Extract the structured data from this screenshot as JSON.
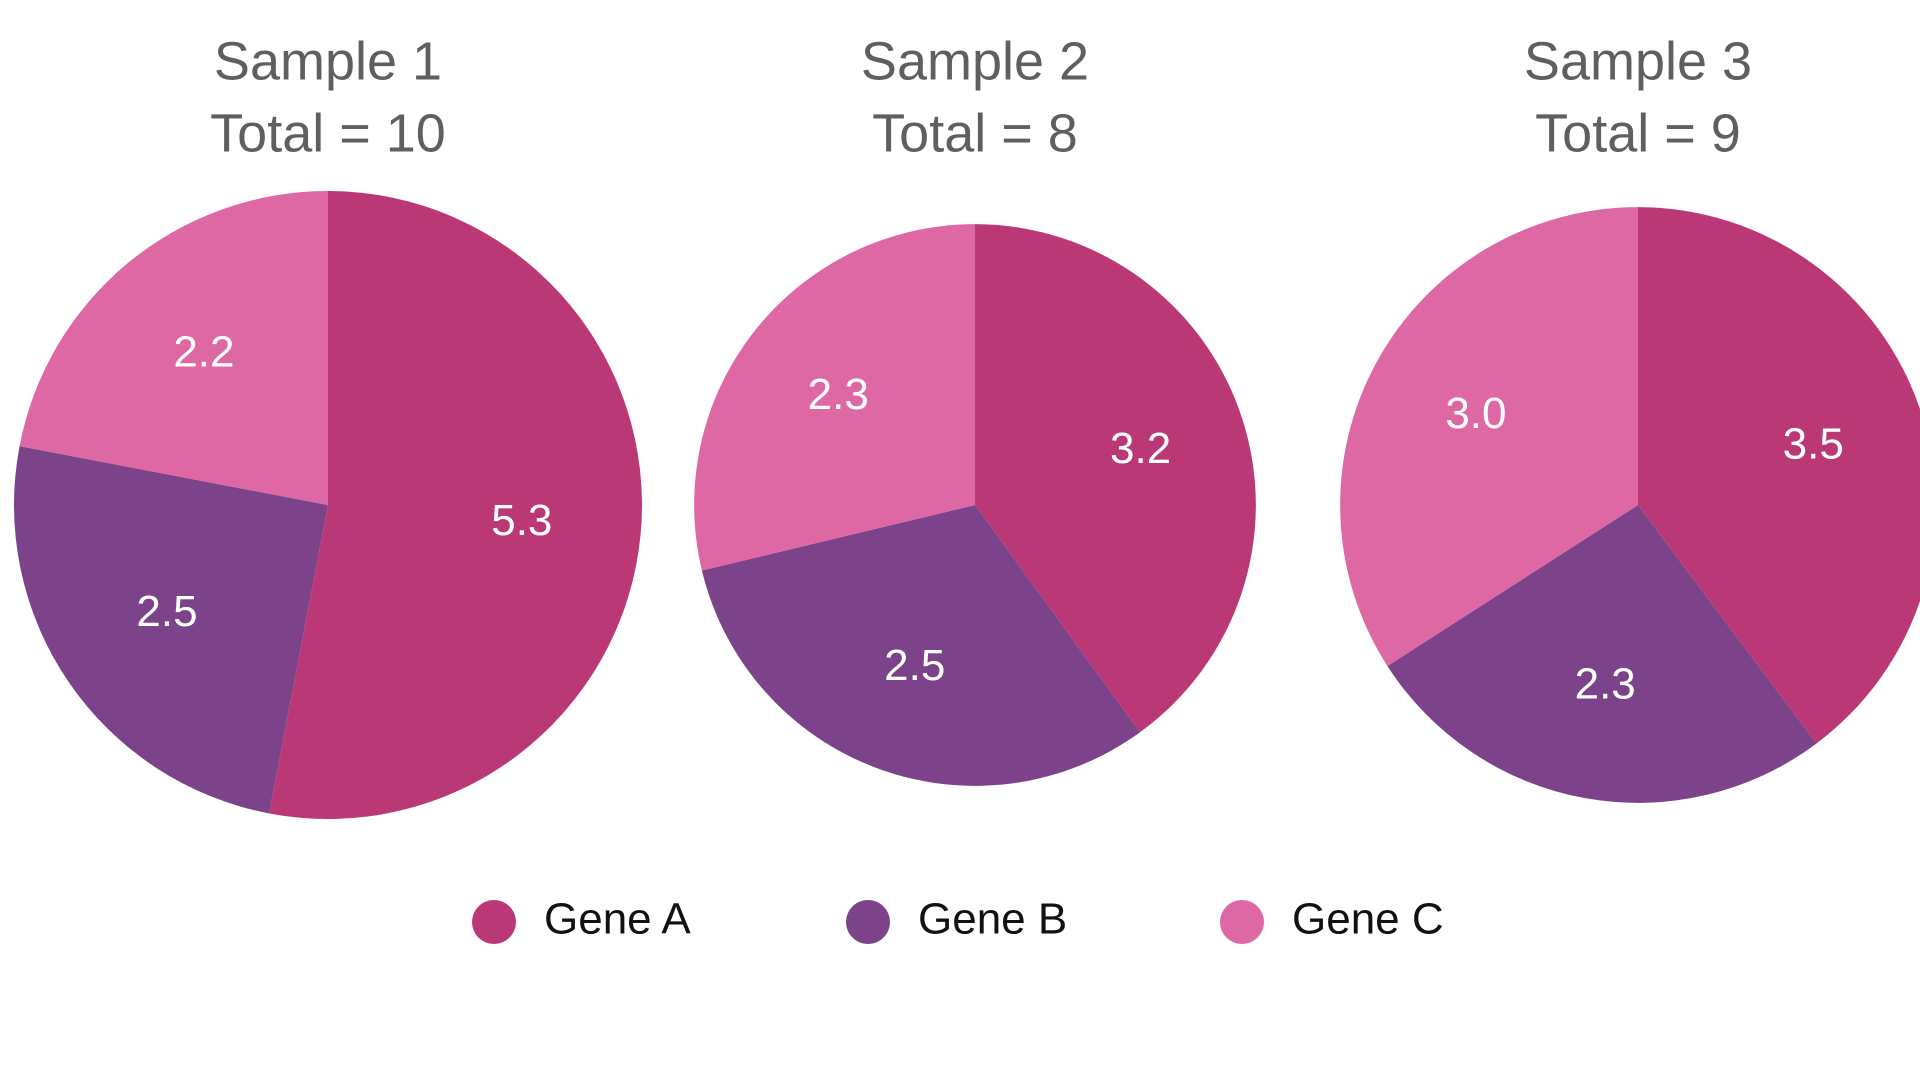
{
  "chart_data": [
    {
      "type": "pie",
      "title": "Sample 1",
      "subtitle": "Total = 10",
      "total": 10,
      "categories": [
        "Gene A",
        "Gene B",
        "Gene C"
      ],
      "values": [
        5.3,
        2.5,
        2.2
      ],
      "value_labels": [
        "5.3",
        "2.5",
        "2.2"
      ]
    },
    {
      "type": "pie",
      "title": "Sample 2",
      "subtitle": "Total = 8",
      "total": 8,
      "categories": [
        "Gene A",
        "Gene B",
        "Gene C"
      ],
      "values": [
        3.2,
        2.5,
        2.3
      ],
      "value_labels": [
        "3.2",
        "2.5",
        "2.3"
      ]
    },
    {
      "type": "pie",
      "title": "Sample 3",
      "subtitle": "Total = 9",
      "total": 9,
      "categories": [
        "Gene A",
        "Gene B",
        "Gene C"
      ],
      "values": [
        3.5,
        2.3,
        3.0
      ],
      "value_labels": [
        "3.5",
        "2.3",
        "3.0"
      ]
    }
  ],
  "legend": {
    "placement": "bottom",
    "items": [
      {
        "label": "Gene A",
        "color": "#bb3877"
      },
      {
        "label": "Gene B",
        "color": "#7c438b"
      },
      {
        "label": "Gene C",
        "color": "#de68a4"
      }
    ]
  }
}
